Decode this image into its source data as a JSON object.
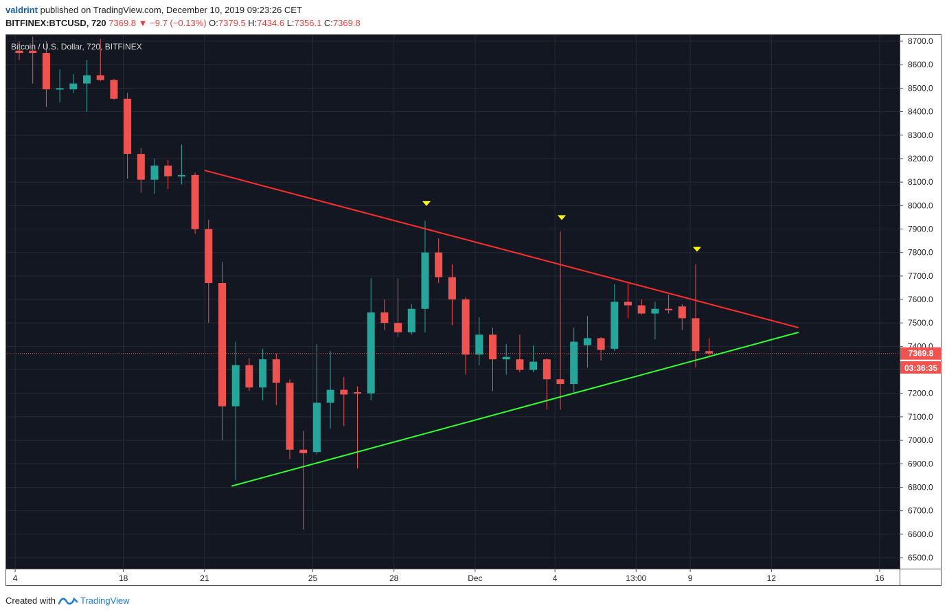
{
  "header": {
    "author": "valdrint",
    "published_text": "published on TradingView.com, December 10, 2019 09:23:26 CET",
    "symbol": "BITFINEX:BTCUSD, 720",
    "last": "7369.8",
    "arrow": "▼",
    "change": "−9.7 (−0.13%)",
    "o_label": "O:",
    "o_value": "7379.5",
    "h_label": "H:",
    "h_value": "7434.6",
    "l_label": "L:",
    "l_value": "7356.1",
    "c_label": "C:",
    "c_value": "7369.8"
  },
  "legend": "Bitcoin / U.S. Dollar, 720, BITFINEX",
  "price_label": "7369.8",
  "countdown_label": "03:36:35",
  "footer": {
    "created_with": "Created with",
    "brand": "TradingView",
    "icon": "tradingview-logo-icon"
  },
  "colors": {
    "background": "#131722",
    "up": "#26a69a",
    "down": "#ef5350",
    "resistance": "#ff2d2d",
    "support": "#33ff33",
    "marker": "#ffff00"
  },
  "chart_data": {
    "type": "candlestick",
    "timeframe": "720",
    "ylim": [
      6450,
      8750
    ],
    "y_ticks": [
      6500,
      6600,
      6700,
      6800,
      6900,
      7000,
      7100,
      7200,
      7300,
      7400,
      7500,
      7600,
      7700,
      7800,
      7900,
      8000,
      8100,
      8200,
      8300,
      8400,
      8500,
      8600,
      8700
    ],
    "x_ticks": [
      {
        "label": "4",
        "index": -0.3
      },
      {
        "label": "18",
        "index": 7.7
      },
      {
        "label": "21",
        "index": 13.7
      },
      {
        "label": "25",
        "index": 21.7
      },
      {
        "label": "28",
        "index": 27.7
      },
      {
        "label": "Dec",
        "index": 33.7
      },
      {
        "label": "4",
        "index": 39.6
      },
      {
        "label": "13:00",
        "index": 45.6
      },
      {
        "label": "9",
        "index": 49.6
      },
      {
        "label": "12",
        "index": 55.6
      },
      {
        "label": "16",
        "index": 63.6
      }
    ],
    "candles": [
      {
        "o": 8660,
        "h": 8700,
        "l": 8620,
        "c": 8650
      },
      {
        "o": 8660,
        "h": 8720,
        "l": 8520,
        "c": 8650
      },
      {
        "o": 8650,
        "h": 8700,
        "l": 8420,
        "c": 8495
      },
      {
        "o": 8495,
        "h": 8580,
        "l": 8440,
        "c": 8500
      },
      {
        "o": 8495,
        "h": 8560,
        "l": 8480,
        "c": 8520
      },
      {
        "o": 8520,
        "h": 8620,
        "l": 8400,
        "c": 8555
      },
      {
        "o": 8555,
        "h": 8710,
        "l": 8530,
        "c": 8535
      },
      {
        "o": 8535,
        "h": 8540,
        "l": 8450,
        "c": 8455
      },
      {
        "o": 8455,
        "h": 8480,
        "l": 8115,
        "c": 8220
      },
      {
        "o": 8220,
        "h": 8245,
        "l": 8055,
        "c": 8110
      },
      {
        "o": 8110,
        "h": 8200,
        "l": 8050,
        "c": 8170
      },
      {
        "o": 8170,
        "h": 8195,
        "l": 8070,
        "c": 8125
      },
      {
        "o": 8125,
        "h": 8260,
        "l": 8090,
        "c": 8130
      },
      {
        "o": 8130,
        "h": 8140,
        "l": 7880,
        "c": 7900
      },
      {
        "o": 7900,
        "h": 7940,
        "l": 7500,
        "c": 7670
      },
      {
        "o": 7670,
        "h": 7760,
        "l": 7000,
        "c": 7145
      },
      {
        "o": 7145,
        "h": 7420,
        "l": 6830,
        "c": 7320
      },
      {
        "o": 7320,
        "h": 7350,
        "l": 7210,
        "c": 7225
      },
      {
        "o": 7225,
        "h": 7390,
        "l": 7170,
        "c": 7345
      },
      {
        "o": 7345,
        "h": 7370,
        "l": 7150,
        "c": 7245
      },
      {
        "o": 7245,
        "h": 7260,
        "l": 6920,
        "c": 6960
      },
      {
        "o": 6960,
        "h": 7040,
        "l": 6620,
        "c": 6945
      },
      {
        "o": 6950,
        "h": 7410,
        "l": 6940,
        "c": 7160
      },
      {
        "o": 7160,
        "h": 7380,
        "l": 7050,
        "c": 7215
      },
      {
        "o": 7215,
        "h": 7270,
        "l": 7060,
        "c": 7195
      },
      {
        "o": 7205,
        "h": 7230,
        "l": 6880,
        "c": 7200
      },
      {
        "o": 7200,
        "h": 7690,
        "l": 7170,
        "c": 7545
      },
      {
        "o": 7545,
        "h": 7600,
        "l": 7470,
        "c": 7500
      },
      {
        "o": 7500,
        "h": 7690,
        "l": 7440,
        "c": 7460
      },
      {
        "o": 7460,
        "h": 7580,
        "l": 7450,
        "c": 7560
      },
      {
        "o": 7560,
        "h": 7935,
        "l": 7460,
        "c": 7800
      },
      {
        "o": 7800,
        "h": 7860,
        "l": 7670,
        "c": 7695
      },
      {
        "o": 7695,
        "h": 7750,
        "l": 7490,
        "c": 7600
      },
      {
        "o": 7600,
        "h": 7610,
        "l": 7280,
        "c": 7365
      },
      {
        "o": 7365,
        "h": 7525,
        "l": 7320,
        "c": 7450
      },
      {
        "o": 7450,
        "h": 7480,
        "l": 7210,
        "c": 7345
      },
      {
        "o": 7345,
        "h": 7410,
        "l": 7280,
        "c": 7355
      },
      {
        "o": 7345,
        "h": 7450,
        "l": 7290,
        "c": 7300
      },
      {
        "o": 7300,
        "h": 7405,
        "l": 7290,
        "c": 7335
      },
      {
        "o": 7345,
        "h": 7350,
        "l": 7130,
        "c": 7260
      },
      {
        "o": 7260,
        "h": 7890,
        "l": 7130,
        "c": 7240
      },
      {
        "o": 7240,
        "h": 7480,
        "l": 7200,
        "c": 7420
      },
      {
        "o": 7405,
        "h": 7530,
        "l": 7310,
        "c": 7435
      },
      {
        "o": 7435,
        "h": 7440,
        "l": 7340,
        "c": 7385
      },
      {
        "o": 7390,
        "h": 7665,
        "l": 7380,
        "c": 7590
      },
      {
        "o": 7590,
        "h": 7670,
        "l": 7520,
        "c": 7575
      },
      {
        "o": 7575,
        "h": 7600,
        "l": 7535,
        "c": 7540
      },
      {
        "o": 7540,
        "h": 7590,
        "l": 7430,
        "c": 7560
      },
      {
        "o": 7560,
        "h": 7620,
        "l": 7540,
        "c": 7555
      },
      {
        "o": 7570,
        "h": 7580,
        "l": 7470,
        "c": 7520
      },
      {
        "o": 7520,
        "h": 7750,
        "l": 7310,
        "c": 7380
      },
      {
        "o": 7380,
        "h": 7435,
        "l": 7356,
        "c": 7370
      }
    ],
    "resistance_line": {
      "from": {
        "index": 13.7,
        "price": 8150
      },
      "to": {
        "index": 57.6,
        "price": 7480
      }
    },
    "support_line": {
      "from": {
        "index": 15.7,
        "price": 6805
      },
      "to": {
        "index": 57.6,
        "price": 7460
      }
    },
    "peak_markers": [
      {
        "index": 30.1,
        "price": 8010
      },
      {
        "index": 40.1,
        "price": 7950
      },
      {
        "index": 50.1,
        "price": 7815
      }
    ],
    "current_price": 7369.8
  }
}
